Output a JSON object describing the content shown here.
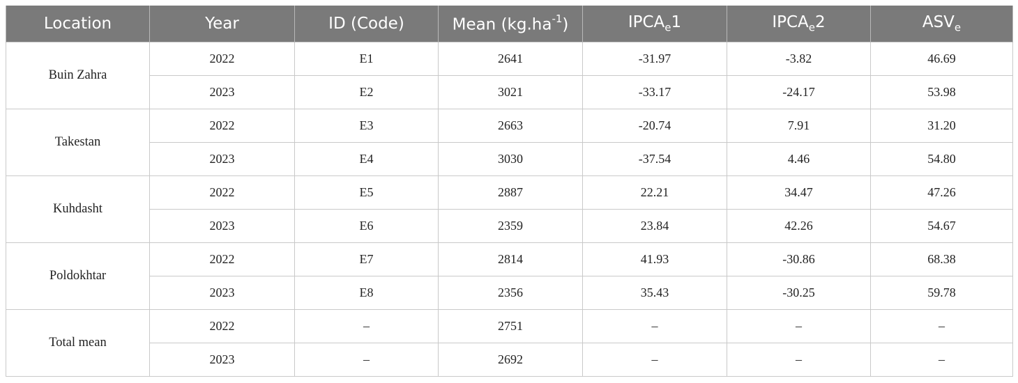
{
  "header": {
    "location": "Location",
    "year": "Year",
    "id_code": "ID (Code)",
    "mean_prefix": "Mean (kg.ha",
    "mean_sup": "-1",
    "mean_suffix": ")",
    "ipca1_prefix": "IPCA",
    "ipca1_sub": "e",
    "ipca1_suffix": "1",
    "ipca2_prefix": "IPCA",
    "ipca2_sub": "e",
    "ipca2_suffix": "2",
    "asv_prefix": "ASV",
    "asv_sub": "e"
  },
  "groups": [
    {
      "location": "Buin Zahra",
      "rows": [
        {
          "year": "2022",
          "id": "E1",
          "mean": "2641",
          "ipca1": "-31.97",
          "ipca2": "-3.82",
          "asv": "46.69"
        },
        {
          "year": "2023",
          "id": "E2",
          "mean": "3021",
          "ipca1": "-33.17",
          "ipca2": "-24.17",
          "asv": "53.98"
        }
      ]
    },
    {
      "location": "Takestan",
      "rows": [
        {
          "year": "2022",
          "id": "E3",
          "mean": "2663",
          "ipca1": "-20.74",
          "ipca2": "7.91",
          "asv": "31.20"
        },
        {
          "year": "2023",
          "id": "E4",
          "mean": "3030",
          "ipca1": "-37.54",
          "ipca2": "4.46",
          "asv": "54.80"
        }
      ]
    },
    {
      "location": "Kuhdasht",
      "rows": [
        {
          "year": "2022",
          "id": "E5",
          "mean": "2887",
          "ipca1": "22.21",
          "ipca2": "34.47",
          "asv": "47.26"
        },
        {
          "year": "2023",
          "id": "E6",
          "mean": "2359",
          "ipca1": "23.84",
          "ipca2": "42.26",
          "asv": "54.67"
        }
      ]
    },
    {
      "location": "Poldokhtar",
      "rows": [
        {
          "year": "2022",
          "id": "E7",
          "mean": "2814",
          "ipca1": "41.93",
          "ipca2": "-30.86",
          "asv": "68.38"
        },
        {
          "year": "2023",
          "id": "E8",
          "mean": "2356",
          "ipca1": "35.43",
          "ipca2": "-30.25",
          "asv": "59.78"
        }
      ]
    },
    {
      "location": "Total mean",
      "rows": [
        {
          "year": "2022",
          "id": "–",
          "mean": "2751",
          "ipca1": "–",
          "ipca2": "–",
          "asv": "–"
        },
        {
          "year": "2023",
          "id": "–",
          "mean": "2692",
          "ipca1": "–",
          "ipca2": "–",
          "asv": "–"
        }
      ]
    }
  ]
}
